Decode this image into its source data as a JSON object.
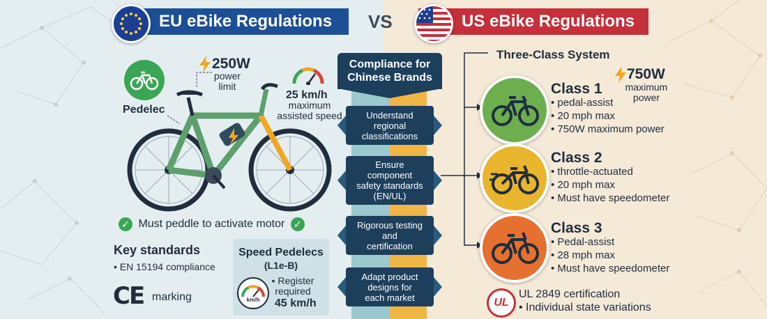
{
  "eu": {
    "title": "EU eBike Regulations",
    "power_value": "250W",
    "power_label_1": "power",
    "power_label_2": "limit",
    "speed_value": "25 km/h",
    "speed_label_1": "maximum",
    "speed_label_2": "assisted speed",
    "category": "Pedelec",
    "pedal_note": "Must peddle to activate motor",
    "standards_title": "Key standards",
    "standards_item": "EN 15194 compliance",
    "ce_mark": "CE",
    "ce_label": "marking",
    "speed_pedelec": {
      "title_1": "Speed Pedelecs",
      "title_2": "(L1e-B)",
      "register_1": "Register",
      "register_2": "required",
      "speed": "45 km/h",
      "gauge_unit": "km/h"
    }
  },
  "vs": "VS",
  "middle": {
    "header_1": "Compliance for",
    "header_2": "Chinese Brands",
    "steps": [
      {
        "lines": [
          "Understand",
          "regional",
          "classifications"
        ]
      },
      {
        "lines": [
          "Ensure",
          "component",
          "safety standards",
          "(EN/UL)"
        ]
      },
      {
        "lines": [
          "Rigorous testing",
          "and",
          "certification"
        ]
      },
      {
        "lines": [
          "Adapt product",
          "designs for",
          "each market"
        ]
      }
    ]
  },
  "us": {
    "title": "US eBike Regulations",
    "system_title": "Three-Class System",
    "power_value": "750W",
    "power_label_1": "maximum",
    "power_label_2": "power",
    "classes": [
      {
        "name": "Class 1",
        "color": "#6dae4f",
        "items": [
          "pedal-assist",
          "20 mph max",
          "750W maximum power"
        ]
      },
      {
        "name": "Class 2",
        "color": "#e9b52c",
        "items": [
          "throttle-actuated",
          "20 mph max",
          "Must have speedometer"
        ]
      },
      {
        "name": "Class 3",
        "color": "#e5702f",
        "items": [
          "Pedal-assist",
          "28 mph max",
          "Must have speedometer"
        ]
      }
    ],
    "ul_logo": "UL",
    "ul_line_1": "UL 2849 certification",
    "ul_line_2": "Individual state variations"
  },
  "colors": {
    "eu_blue": "#1c4f95",
    "us_red": "#c5303a",
    "navy": "#1d3f5c",
    "check_green": "#3aa655",
    "bolt_orange": "#f2a623"
  }
}
